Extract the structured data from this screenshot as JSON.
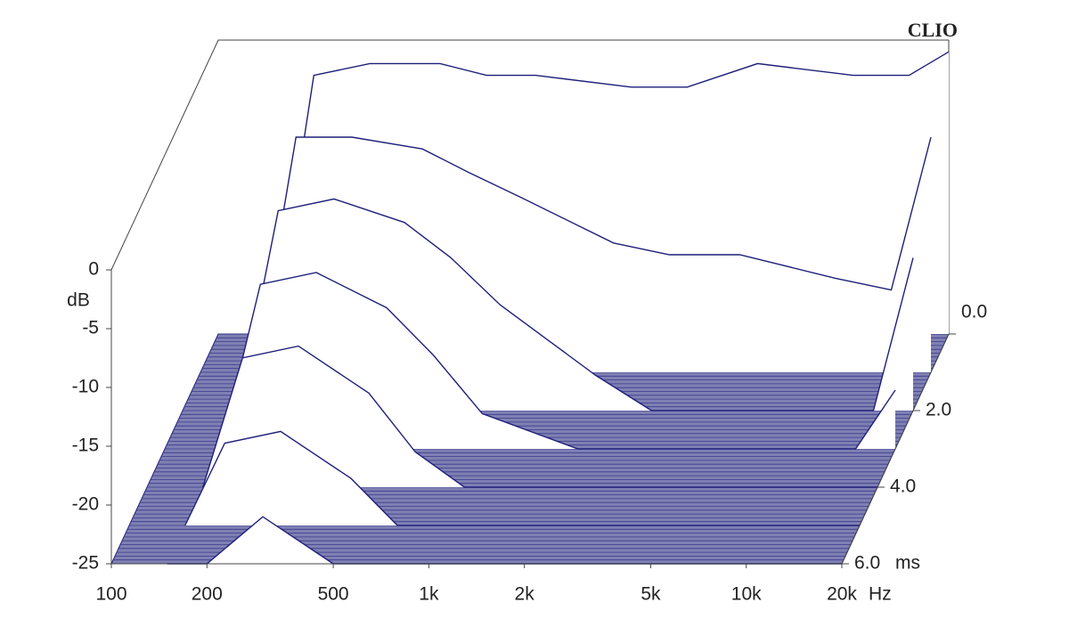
{
  "chart_data": {
    "type": "waterfall",
    "brand": "CLIO",
    "ylabel": "dB",
    "xlabel": "Hz",
    "zlabel": "ms",
    "x": [
      150,
      200,
      300,
      500,
      700,
      1000,
      2000,
      3000,
      5000,
      10000,
      15000,
      20000
    ],
    "slices": [
      {
        "t": 0,
        "values": [
          -25,
          -3,
          -2,
          -2,
          -3,
          -3,
          -4,
          -4,
          -2,
          -3,
          -3,
          -1
        ]
      },
      {
        "t": 1,
        "values": [
          -25,
          -5,
          -5,
          -6,
          -8,
          -10,
          -14,
          -15,
          -15,
          -17,
          -18,
          -5
        ]
      },
      {
        "t": 2,
        "values": [
          -25,
          -8,
          -7,
          -9,
          -12,
          -16,
          -22,
          -25,
          -25,
          -25,
          -25,
          -12
        ]
      },
      {
        "t": 3,
        "values": [
          -25,
          -11,
          -10,
          -13,
          -17,
          -22,
          -25,
          -25,
          -25,
          -25,
          -25,
          -20
        ]
      },
      {
        "t": 4,
        "values": [
          -25,
          -14,
          -13,
          -17,
          -22,
          -25,
          -25,
          -25,
          -25,
          -25,
          -25,
          -25
        ]
      },
      {
        "t": 5,
        "values": [
          -25,
          -18,
          -17,
          -21,
          -25,
          -25,
          -25,
          -25,
          -25,
          -25,
          -25,
          -25
        ]
      },
      {
        "t": 6,
        "values": [
          -25,
          -25,
          -21,
          -25,
          -25,
          -25,
          -25,
          -25,
          -25,
          -25,
          -25,
          -25
        ]
      }
    ],
    "color": "#1f1f7a",
    "log_x": true,
    "xlim": [
      100,
      20000
    ],
    "xticks": [
      100,
      200,
      500,
      {
        "value": 1000,
        "label": "1k"
      },
      {
        "value": 2000,
        "label": "2k"
      },
      {
        "value": 5000,
        "label": "5k"
      },
      {
        "value": 10000,
        "label": "10k"
      },
      {
        "value": 20000,
        "label": "20k"
      }
    ],
    "ylim": [
      -25,
      0
    ],
    "yticks": [
      0,
      -5,
      -10,
      -15,
      -20,
      -25
    ],
    "zlim": [
      0,
      6
    ],
    "zticks": [
      {
        "value": 0,
        "label": "0.0"
      },
      {
        "value": 2,
        "label": "2.0"
      },
      {
        "value": 4,
        "label": "4.0"
      },
      {
        "value": 6,
        "label": "6.0"
      }
    ]
  }
}
